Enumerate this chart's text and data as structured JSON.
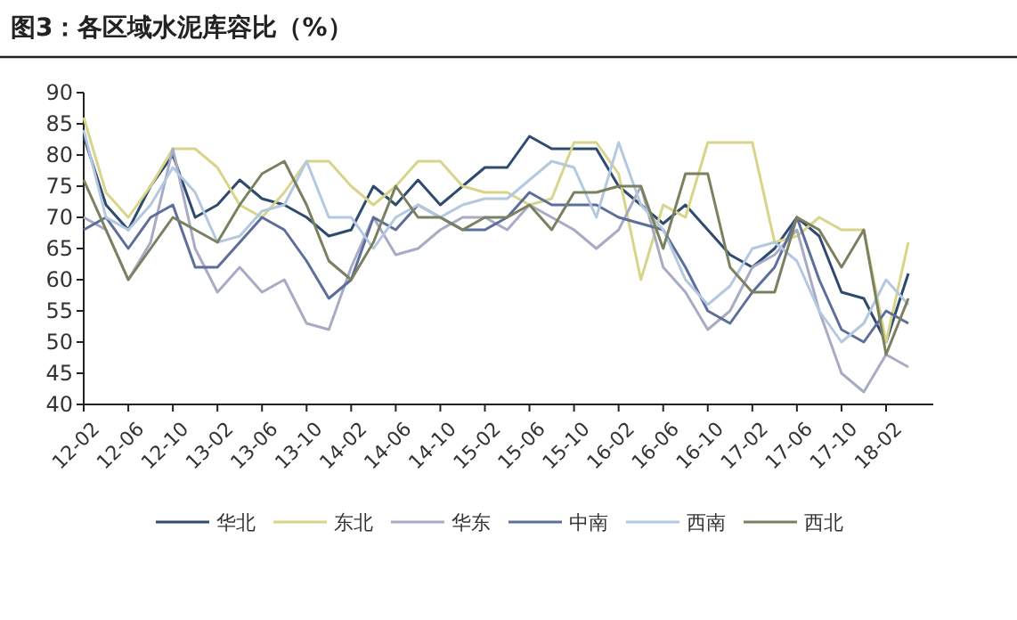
{
  "chart_data": {
    "type": "line",
    "title": "图3：各区域水泥库容比（%）",
    "categories": [
      "12-02",
      null,
      "12-06",
      null,
      "12-10",
      null,
      "13-02",
      null,
      "13-06",
      null,
      "13-10",
      null,
      "14-02",
      null,
      "14-06",
      null,
      "14-10",
      null,
      "15-02",
      null,
      "15-06",
      null,
      "15-10",
      null,
      "16-02",
      null,
      "16-06",
      null,
      "16-10",
      null,
      "17-02",
      null,
      "17-06",
      null,
      "17-10",
      null,
      "18-02",
      null
    ],
    "series": [
      {
        "name": "华北",
        "color": "#2e4a6e",
        "values": [
          83,
          72,
          68,
          75,
          80,
          70,
          72,
          76,
          73,
          72,
          70,
          67,
          68,
          75,
          72,
          76,
          72,
          75,
          78,
          78,
          83,
          81,
          81,
          81,
          75,
          72,
          69,
          72,
          68,
          64,
          62,
          65,
          70,
          67,
          58,
          57,
          50,
          61
        ]
      },
      {
        "name": "东北",
        "color": "#d8d48a",
        "values": [
          86,
          74,
          70,
          75,
          81,
          81,
          78,
          72,
          70,
          74,
          79,
          79,
          75,
          72,
          75,
          79,
          79,
          75,
          74,
          74,
          72,
          73,
          82,
          82,
          77,
          60,
          72,
          70,
          82,
          82,
          82,
          66,
          67,
          70,
          68,
          68,
          50,
          66
        ]
      },
      {
        "name": "华东",
        "color": "#a8abc4",
        "values": [
          70,
          68,
          60,
          66,
          81,
          65,
          58,
          62,
          58,
          60,
          53,
          52,
          62,
          70,
          64,
          65,
          68,
          70,
          70,
          68,
          72,
          70,
          68,
          65,
          68,
          75,
          62,
          58,
          52,
          55,
          62,
          64,
          68,
          55,
          45,
          42,
          48,
          46
        ]
      },
      {
        "name": "中南",
        "color": "#5d6e9a",
        "values": [
          68,
          70,
          65,
          70,
          72,
          62,
          62,
          66,
          70,
          68,
          63,
          57,
          60,
          70,
          68,
          72,
          70,
          68,
          68,
          70,
          74,
          72,
          72,
          72,
          70,
          69,
          68,
          62,
          55,
          53,
          58,
          62,
          70,
          60,
          52,
          50,
          55,
          53
        ]
      },
      {
        "name": "西南",
        "color": "#b4c8e0",
        "values": [
          84,
          70,
          68,
          72,
          78,
          74,
          66,
          67,
          71,
          72,
          79,
          70,
          70,
          65,
          70,
          72,
          70,
          72,
          73,
          73,
          76,
          79,
          78,
          70,
          82,
          72,
          68,
          60,
          56,
          59,
          65,
          66,
          63,
          55,
          50,
          53,
          60,
          56
        ]
      },
      {
        "name": "西北",
        "color": "#7a8060",
        "values": [
          76,
          68,
          60,
          65,
          70,
          68,
          66,
          72,
          77,
          79,
          72,
          63,
          60,
          66,
          75,
          70,
          70,
          68,
          70,
          70,
          72,
          68,
          74,
          74,
          75,
          75,
          65,
          77,
          77,
          62,
          58,
          58,
          70,
          68,
          62,
          68,
          48,
          57
        ]
      }
    ],
    "ylim": [
      40,
      90
    ],
    "yticks": [
      40,
      45,
      50,
      55,
      60,
      65,
      70,
      75,
      80,
      85,
      90
    ],
    "grid": false,
    "legend": "bottom",
    "marker": "none",
    "line_style": "solid"
  }
}
